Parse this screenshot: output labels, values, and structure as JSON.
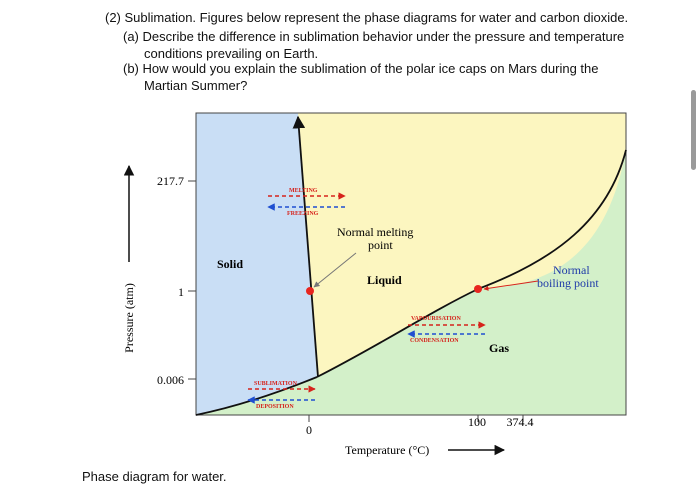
{
  "question": {
    "title": "(2) Sublimation. Figures below represent the phase diagrams for water and carbon dioxide.",
    "part_a_line1": "(a) Describe the difference in sublimation behavior under the pressure and temperature",
    "part_a_line2": "conditions prevailing on Earth.",
    "part_b_line1": "(b) How would you explain the sublimation of the polar ice caps on Mars during the",
    "part_b_line2": "Martian Summer?"
  },
  "diagram": {
    "y_axis_label": "Pressure (atm)",
    "x_axis_label": "Temperature (°C)",
    "y_ticks": [
      "217.7",
      "1",
      "0.006"
    ],
    "x_ticks": [
      "0",
      "100",
      "374.4"
    ],
    "regions": {
      "solid": "Solid",
      "liquid": "Liquid",
      "gas": "Gas"
    },
    "annotations": {
      "normal_melting_line1": "Normal melting",
      "normal_melting_line2": "point",
      "normal_boiling_line1": "Normal",
      "normal_boiling_line2": "boiling point"
    },
    "transitions": {
      "melting": "MELTING",
      "freezing": "FREEZING",
      "vapourisation": "VAPOURISATION",
      "condensation": "CONDENSATION",
      "sublimation": "SUBLIMATION",
      "deposition": "DEPOSITION"
    },
    "colors": {
      "solid": "#c9def5",
      "liquid": "#fcf6c0",
      "gas": "#d3f0c9",
      "point": "#e8261f",
      "arrow_red": "#d6231c",
      "arrow_blue": "#1f4fd1"
    }
  },
  "caption": "Phase diagram for water."
}
